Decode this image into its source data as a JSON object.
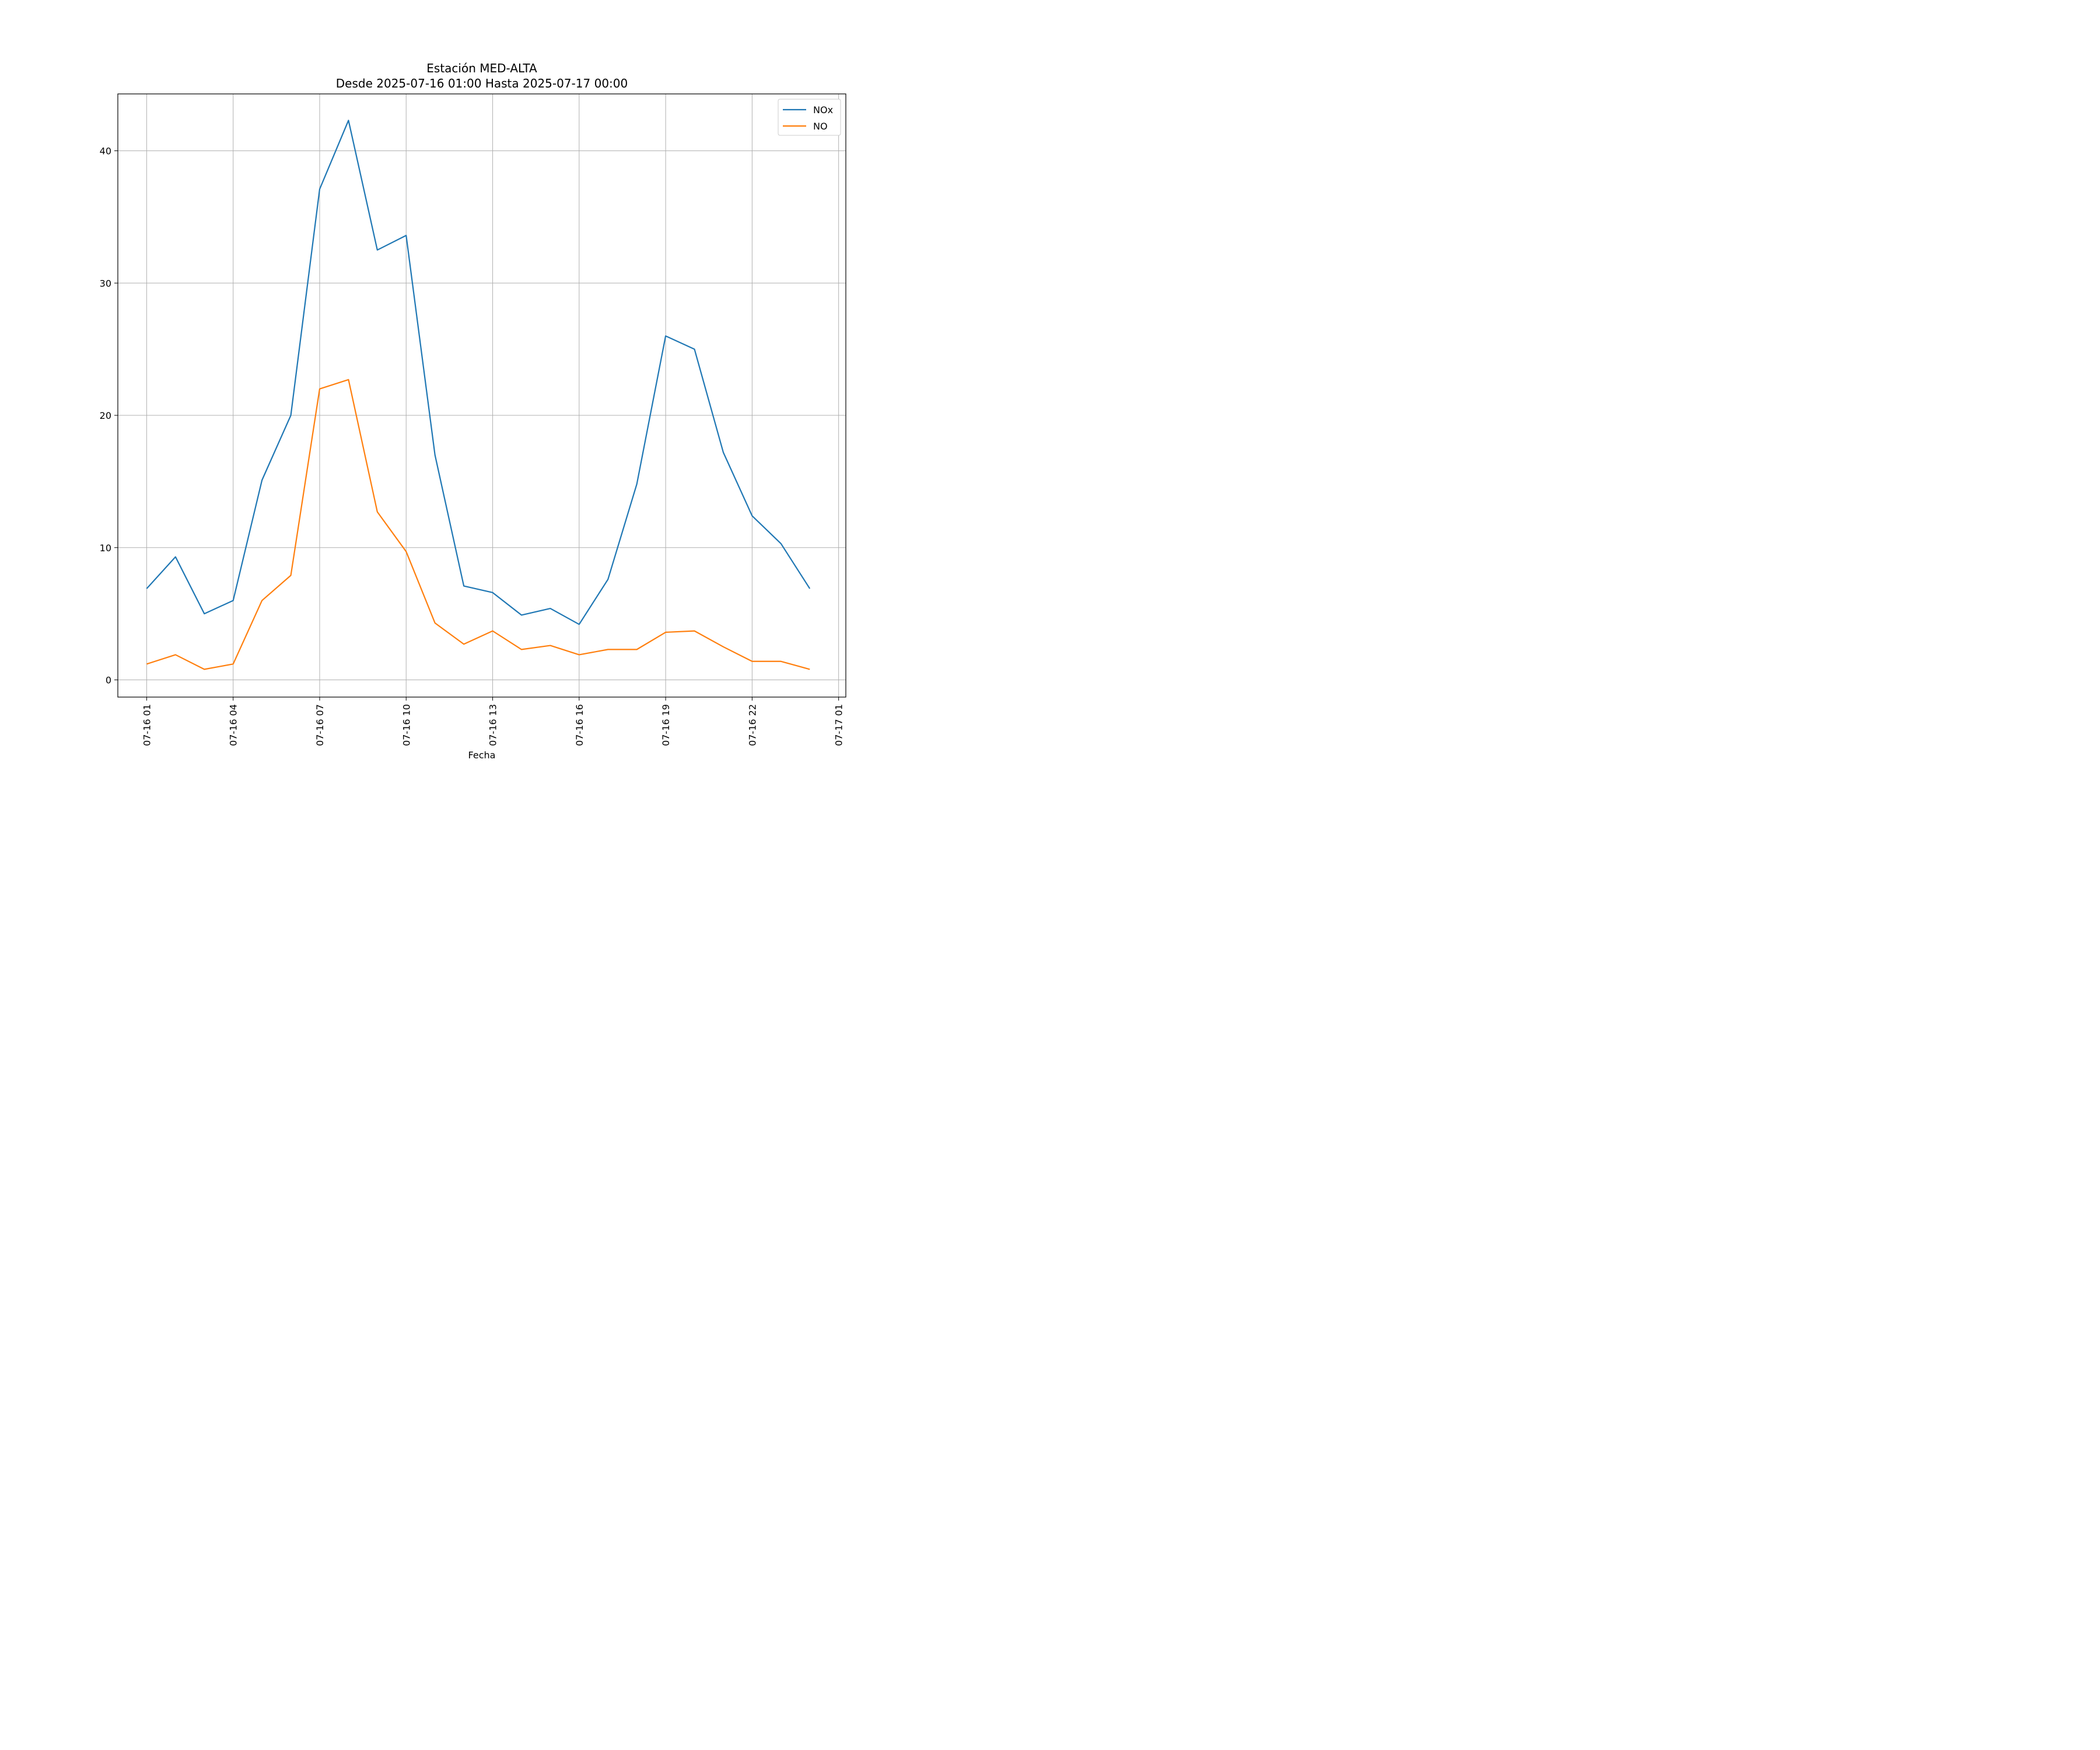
{
  "chart_data": {
    "type": "line",
    "title": "Estación MED-ALTA",
    "subtitle": "Desde 2025-07-16 01:00 Hasta 2025-07-17 00:00",
    "xlabel": "Fecha",
    "ylabel": "",
    "x": [
      "07-16 01",
      "07-16 02",
      "07-16 03",
      "07-16 04",
      "07-16 05",
      "07-16 06",
      "07-16 07",
      "07-16 08",
      "07-16 09",
      "07-16 10",
      "07-16 11",
      "07-16 12",
      "07-16 13",
      "07-16 14",
      "07-16 15",
      "07-16 16",
      "07-16 17",
      "07-16 18",
      "07-16 19",
      "07-16 20",
      "07-16 21",
      "07-16 22",
      "07-16 23",
      "07-17 00"
    ],
    "x_ticks": [
      "07-16 01",
      "07-16 04",
      "07-16 07",
      "07-16 10",
      "07-16 13",
      "07-16 16",
      "07-16 19",
      "07-16 22",
      "07-17 01"
    ],
    "y_ticks": [
      0,
      10,
      20,
      30,
      40
    ],
    "ylim": [
      -1.3,
      44.3
    ],
    "xlim": [
      "07-16 00:00",
      "07-17 01:15"
    ],
    "grid": true,
    "legend": "top-right",
    "series": [
      {
        "name": "NOx",
        "color": "#1f77b4",
        "values": [
          6.9,
          9.3,
          5.0,
          6.0,
          15.1,
          20.0,
          37.1,
          42.3,
          32.5,
          33.6,
          17.0,
          7.1,
          6.6,
          4.9,
          5.4,
          4.2,
          7.6,
          14.8,
          26.0,
          25.0,
          17.2,
          12.4,
          10.3,
          6.9
        ]
      },
      {
        "name": "NO",
        "color": "#ff7f0e",
        "values": [
          1.2,
          1.9,
          0.8,
          1.2,
          6.0,
          7.9,
          22.0,
          22.7,
          12.7,
          9.7,
          4.3,
          2.7,
          3.7,
          2.3,
          2.6,
          1.9,
          2.3,
          2.3,
          3.6,
          3.7,
          2.5,
          1.4,
          1.4,
          0.8
        ]
      }
    ]
  }
}
